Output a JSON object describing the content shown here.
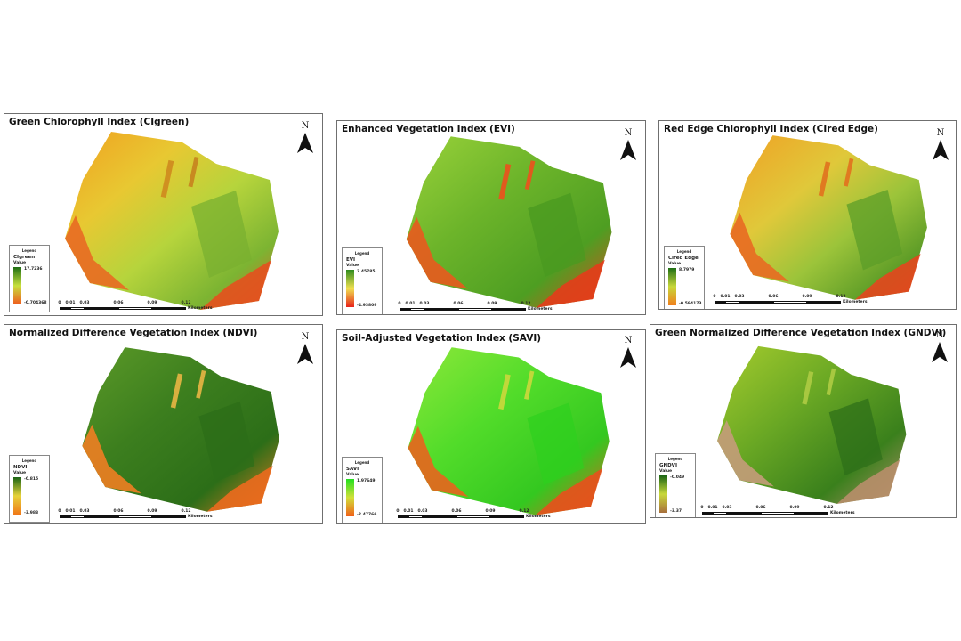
{
  "map_symbols": {
    "north_arrow": "north-arrow-icon",
    "north_label": "N"
  },
  "scale_bar": {
    "ticks": [
      "0",
      "0.01",
      "0.03",
      "0.06",
      "0.09",
      "0.12"
    ],
    "unit": "Kilometers"
  },
  "legend_title": "Legend",
  "value_label": "Value",
  "panels": [
    {
      "title": "Green Chlorophyll Index (CIgreen)",
      "index_name": "CIgreen",
      "max_value": "17.7236",
      "min_value": "-0.704368",
      "ramp_high": "#1e6e14",
      "ramp_mid": "#c8e03c",
      "ramp_low": "#f05a1e"
    },
    {
      "title": "Enhanced Vegetation Index (EVI)",
      "index_name": "EVI",
      "max_value": "2.45785",
      "min_value": "-4.93809",
      "ramp_high": "#2e8b1e",
      "ramp_mid": "#f0e050",
      "ramp_low": "#e8241a"
    },
    {
      "title": "Red Edge Chlorophyll Index (CIred Edge)",
      "index_name": "CIred Edge",
      "max_value": "8.7979",
      "min_value": "-0.594173",
      "ramp_high": "#1e6e14",
      "ramp_mid": "#c8d83a",
      "ramp_low": "#f0801e"
    },
    {
      "title": "Normalized Difference Vegetation Index (NDVI)",
      "index_name": "NDVI",
      "max_value": "-0.815",
      "min_value": "-3.983",
      "ramp_high": "#1a6414",
      "ramp_mid": "#e6d23a",
      "ramp_low": "#f07818"
    },
    {
      "title": "Soil-Adjusted Vegetation Index (SAVI)",
      "index_name": "SAVI",
      "max_value": "1.97649",
      "min_value": "-2.47766",
      "ramp_high": "#22e01e",
      "ramp_mid": "#d2e03a",
      "ramp_low": "#f06018"
    },
    {
      "title": "Green Normalized Difference Vegetation Index (GNDVI)",
      "index_name": "GNDVI",
      "max_value": "-0.049",
      "min_value": "-3.37",
      "ramp_high": "#1a6414",
      "ramp_mid": "#c8d83a",
      "ramp_low": "#a8703c"
    }
  ]
}
